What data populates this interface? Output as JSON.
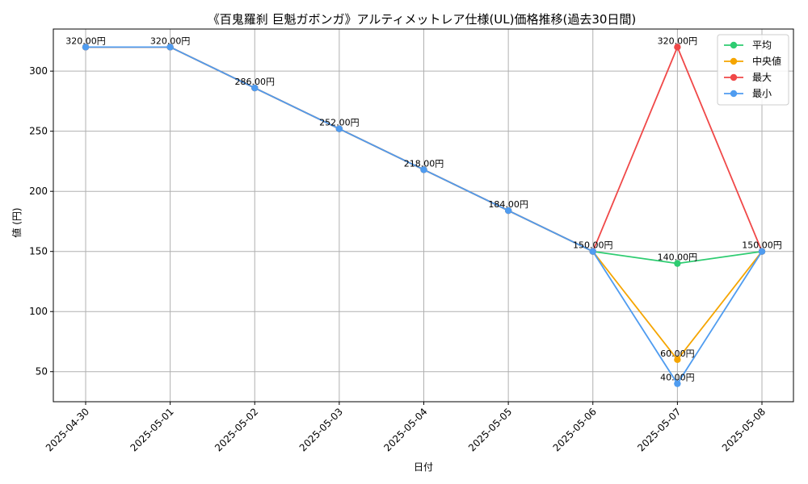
{
  "chart_data": {
    "type": "line",
    "title": "《百鬼羅刹 巨魁ガボンガ》アルティメットレア仕様(UL)価格推移(過去30日間)",
    "xlabel": "日付",
    "ylabel": "値 (円)",
    "x": [
      "2025-04-30",
      "2025-05-01",
      "2025-05-02",
      "2025-05-03",
      "2025-05-04",
      "2025-05-05",
      "2025-05-06",
      "2025-05-07",
      "2025-05-08"
    ],
    "ylim": [
      25,
      335
    ],
    "yticks": [
      50,
      100,
      150,
      200,
      250,
      300
    ],
    "grid": true,
    "legend_position": "top-right",
    "series": [
      {
        "name": "平均",
        "color": "#2ecc71",
        "values": [
          320,
          320,
          286,
          252,
          218,
          184,
          150,
          140,
          150
        ]
      },
      {
        "name": "中央値",
        "color": "#f5a500",
        "values": [
          320,
          320,
          286,
          252,
          218,
          184,
          150,
          60,
          150
        ]
      },
      {
        "name": "最大",
        "color": "#f04848",
        "values": [
          320,
          320,
          286,
          252,
          218,
          184,
          150,
          320,
          150
        ]
      },
      {
        "name": "最小",
        "color": "#4f9cf0",
        "values": [
          320,
          320,
          286,
          252,
          218,
          184,
          150,
          40,
          150
        ]
      }
    ],
    "data_labels": [
      {
        "x": "2025-04-30",
        "value": 320,
        "text": "320.00円"
      },
      {
        "x": "2025-05-01",
        "value": 320,
        "text": "320.00円"
      },
      {
        "x": "2025-05-02",
        "value": 286,
        "text": "286.00円"
      },
      {
        "x": "2025-05-03",
        "value": 252,
        "text": "252.00円"
      },
      {
        "x": "2025-05-04",
        "value": 218,
        "text": "218.00円"
      },
      {
        "x": "2025-05-05",
        "value": 184,
        "text": "184.00円"
      },
      {
        "x": "2025-05-06",
        "value": 150,
        "text": "150.00円"
      },
      {
        "x": "2025-05-07",
        "value": 320,
        "text": "320.00円"
      },
      {
        "x": "2025-05-07",
        "value": 140,
        "text": "140.00円"
      },
      {
        "x": "2025-05-07",
        "value": 60,
        "text": "60.00円"
      },
      {
        "x": "2025-05-07",
        "value": 40,
        "text": "40.00円"
      },
      {
        "x": "2025-05-08",
        "value": 150,
        "text": "150.00円"
      }
    ]
  }
}
